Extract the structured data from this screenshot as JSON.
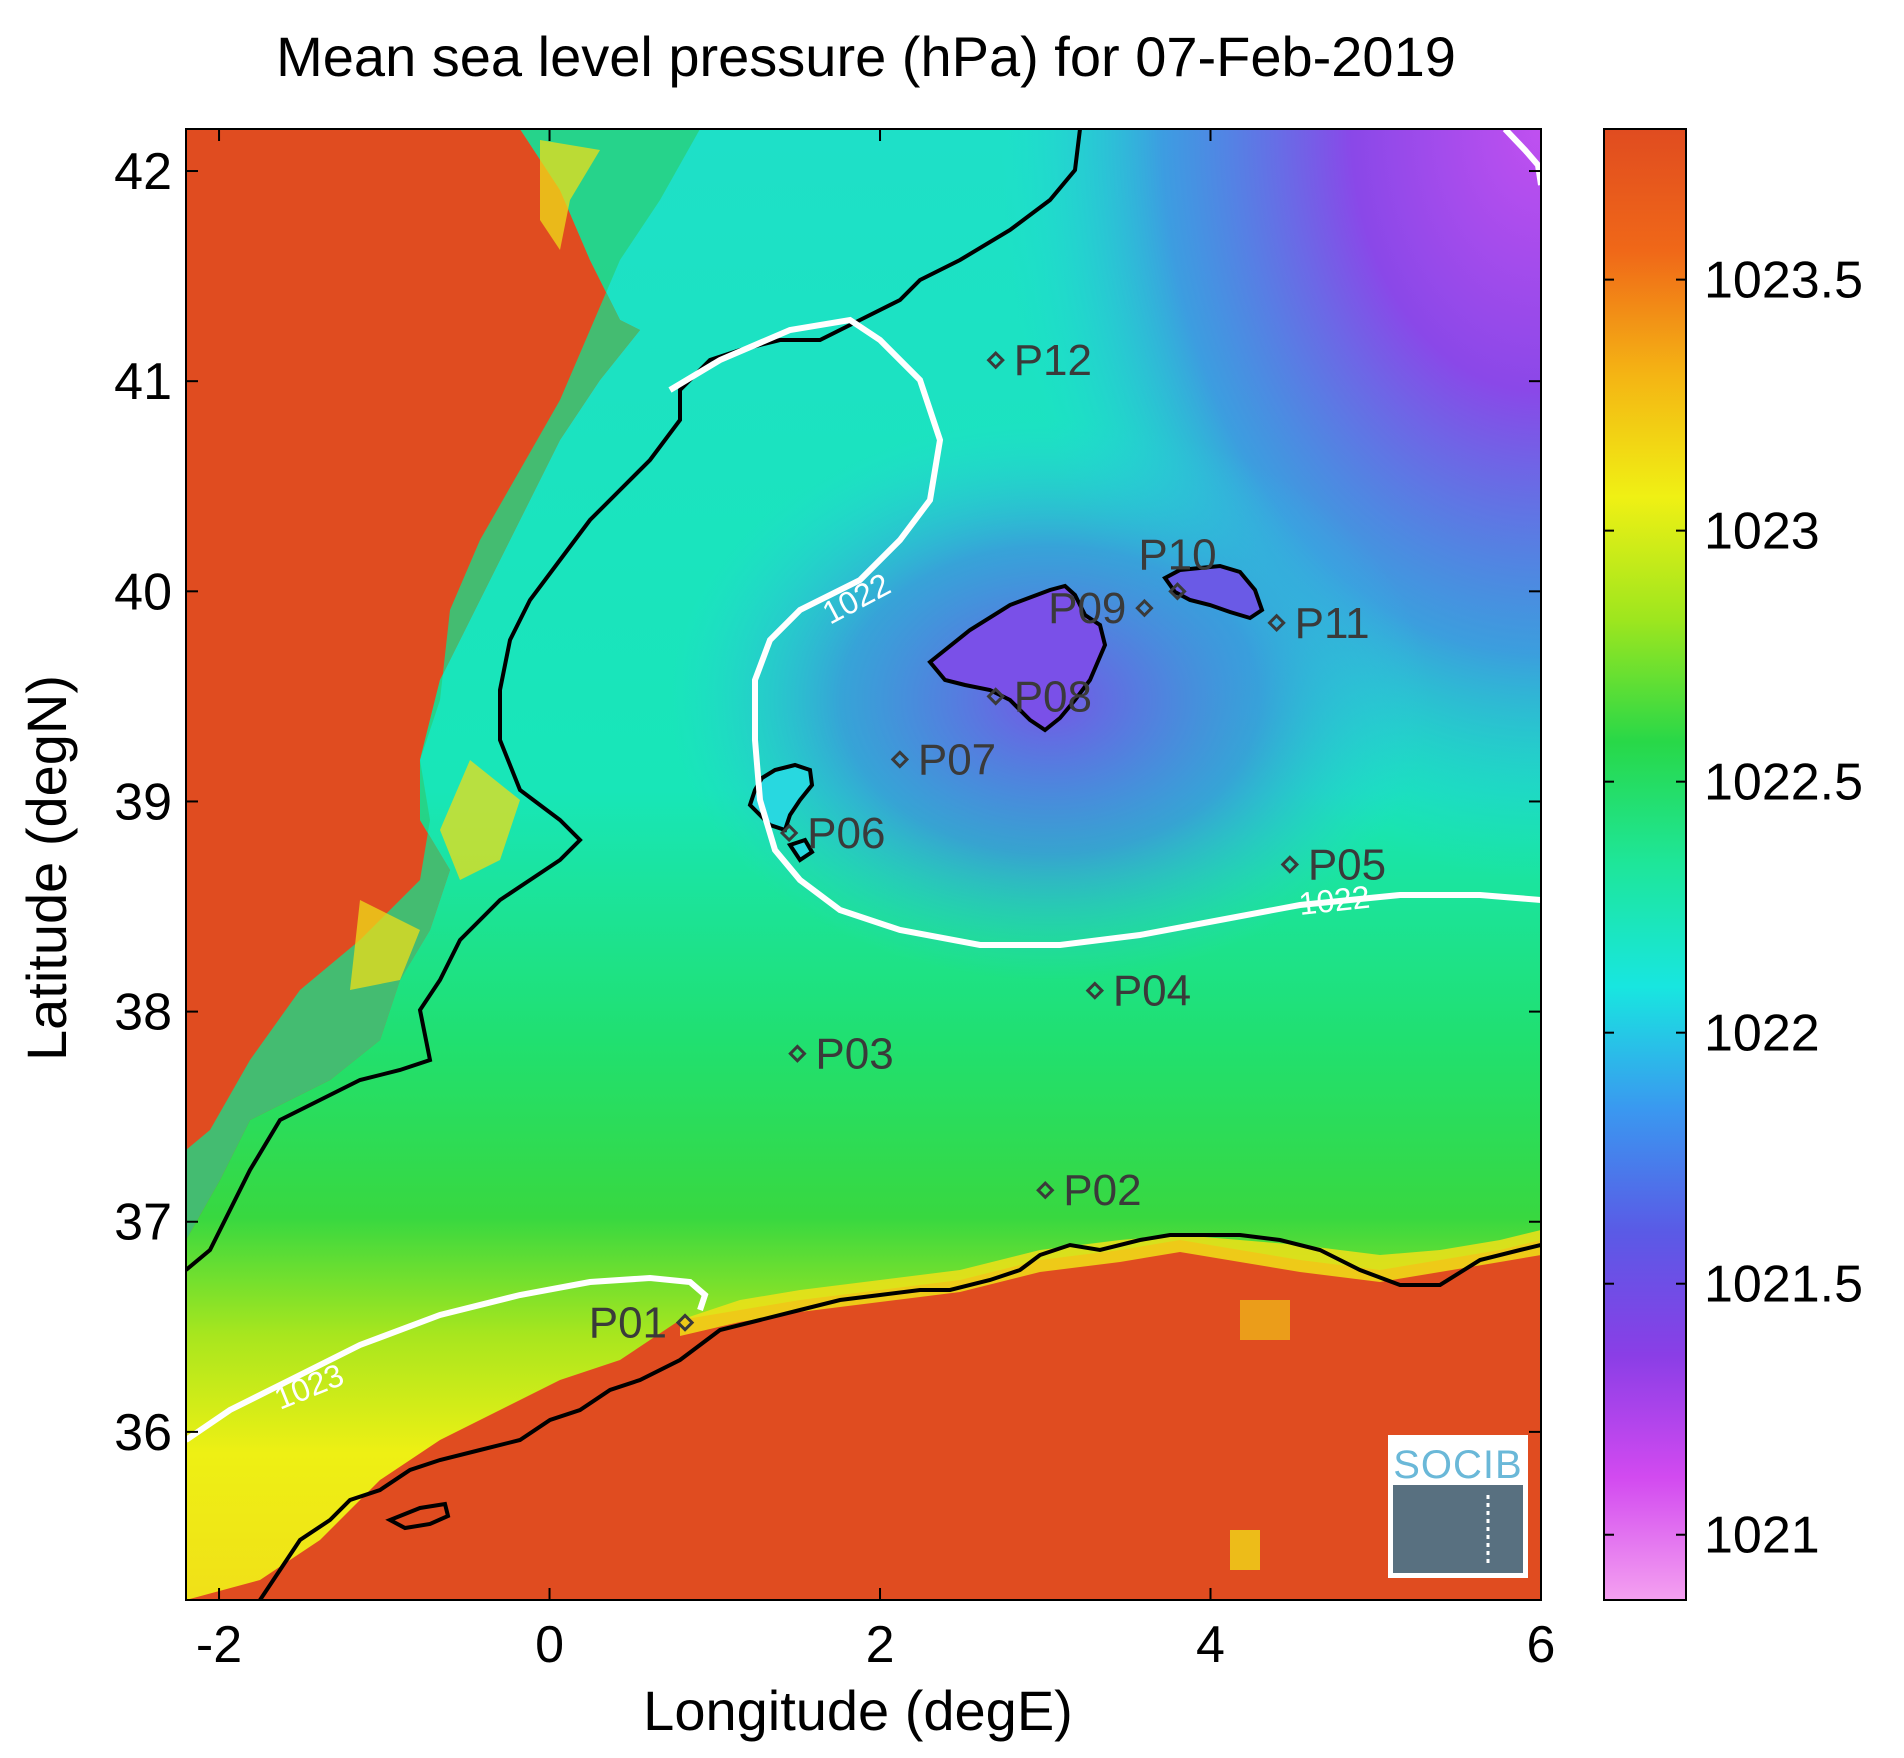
{
  "title": "Mean sea level pressure (hPa) for 07-Feb-2019",
  "x_axis": {
    "label": "Longitude (degE)",
    "range": [
      -2.2,
      6.0
    ],
    "ticks": [
      {
        "value": -2,
        "label": "-2"
      },
      {
        "value": 0,
        "label": "0"
      },
      {
        "value": 2,
        "label": "2"
      },
      {
        "value": 4,
        "label": "4"
      },
      {
        "value": 6,
        "label": "6"
      }
    ]
  },
  "y_axis": {
    "label": "Latitude (degN)",
    "range": [
      35.2,
      42.2
    ],
    "ticks": [
      {
        "value": 36,
        "label": "36"
      },
      {
        "value": 37,
        "label": "37"
      },
      {
        "value": 38,
        "label": "38"
      },
      {
        "value": 39,
        "label": "39"
      },
      {
        "value": 40,
        "label": "40"
      },
      {
        "value": 41,
        "label": "41"
      },
      {
        "value": 42,
        "label": "42"
      }
    ]
  },
  "colorbar": {
    "range": [
      1020.87,
      1023.8
    ],
    "ticks": [
      {
        "value": 1021,
        "label": "1021"
      },
      {
        "value": 1021.5,
        "label": "1021.5"
      },
      {
        "value": 1022,
        "label": "1022"
      },
      {
        "value": 1022.5,
        "label": "1022.5"
      },
      {
        "value": 1023,
        "label": "1023"
      },
      {
        "value": 1023.5,
        "label": "1023.5"
      }
    ],
    "colors": [
      "#f4a0f0",
      "#d24af0",
      "#8a3ee6",
      "#5a5ae6",
      "#3a98f0",
      "#18e6e0",
      "#1ee69a",
      "#28d848",
      "#9ee61e",
      "#f0f014",
      "#f4b414",
      "#f06818",
      "#e04c20"
    ]
  },
  "contours": [
    {
      "value": 1022,
      "label": "1022"
    },
    {
      "value": 1022,
      "label": "1022"
    },
    {
      "value": 1023,
      "label": "1023"
    }
  ],
  "chart_data": {
    "type": "heatmap",
    "title": "Mean sea level pressure (hPa) for 07-Feb-2019",
    "xlabel": "Longitude (degE)",
    "ylabel": "Latitude (degN)",
    "xlim": [
      -2.2,
      6.0
    ],
    "ylim": [
      35.2,
      42.2
    ],
    "colorbar_range": [
      1020.87,
      1023.8
    ],
    "contour_levels": [
      1022,
      1023
    ],
    "points": [
      {
        "name": "P01",
        "lon": 0.82,
        "lat": 36.52,
        "label_side": "left"
      },
      {
        "name": "P02",
        "lon": 3.0,
        "lat": 37.15,
        "label_side": "right"
      },
      {
        "name": "P03",
        "lon": 1.5,
        "lat": 37.8,
        "label_side": "right"
      },
      {
        "name": "P04",
        "lon": 3.3,
        "lat": 38.1,
        "label_side": "right"
      },
      {
        "name": "P05",
        "lon": 4.48,
        "lat": 38.7,
        "label_side": "right"
      },
      {
        "name": "P06",
        "lon": 1.45,
        "lat": 38.85,
        "label_side": "right"
      },
      {
        "name": "P07",
        "lon": 2.12,
        "lat": 39.2,
        "label_side": "right"
      },
      {
        "name": "P08",
        "lon": 2.7,
        "lat": 39.5,
        "label_side": "right"
      },
      {
        "name": "P09",
        "lon": 3.6,
        "lat": 39.92,
        "label_side": "left"
      },
      {
        "name": "P10",
        "lon": 3.8,
        "lat": 40.0,
        "label_side": "above"
      },
      {
        "name": "P11",
        "lon": 4.4,
        "lat": 39.85,
        "label_side": "right"
      },
      {
        "name": "P12",
        "lon": 2.7,
        "lat": 41.1,
        "label_side": "right"
      }
    ]
  },
  "logo": {
    "text": "SOCIB"
  }
}
